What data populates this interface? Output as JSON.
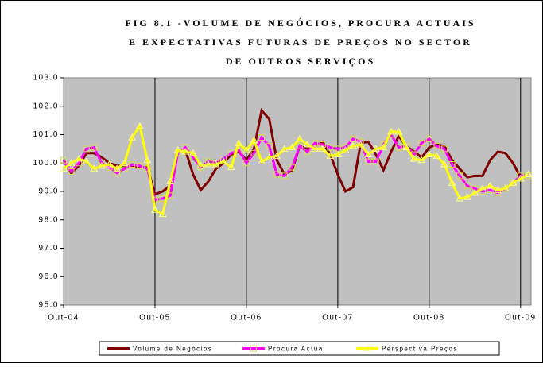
{
  "chart_data": {
    "type": "line",
    "title": [
      "FIG 8.1 -VOLUME DE NEGÓCIOS, PROCURA ACTUAIS",
      "E EXPECTATIVAS FUTURAS DE PREÇOS NO SECTOR",
      "DE OUTROS SERVIÇOS"
    ],
    "categories": [
      "Out-04",
      null,
      null,
      null,
      null,
      null,
      null,
      null,
      null,
      null,
      null,
      null,
      "Out-05",
      null,
      null,
      null,
      null,
      null,
      null,
      null,
      null,
      null,
      null,
      null,
      "Out-06",
      null,
      null,
      null,
      null,
      null,
      null,
      null,
      null,
      null,
      null,
      null,
      "Out-07",
      null,
      null,
      null,
      null,
      null,
      null,
      null,
      null,
      null,
      null,
      null,
      "Out-08",
      null,
      null,
      null,
      null,
      null,
      null,
      null,
      null,
      null,
      null,
      null,
      "Out-09",
      null
    ],
    "series": [
      {
        "name": "Volume de Negócios",
        "color": "#800000",
        "marker": "none",
        "values": [
          100.1,
          99.65,
          99.9,
          100.35,
          100.35,
          100.2,
          100.0,
          99.9,
          99.9,
          99.85,
          99.85,
          99.85,
          98.9,
          99.0,
          99.2,
          100.4,
          100.45,
          99.6,
          99.05,
          99.35,
          99.8,
          100.0,
          100.3,
          100.4,
          100.1,
          100.5,
          101.85,
          101.55,
          100.1,
          99.6,
          99.75,
          100.6,
          100.5,
          100.6,
          100.75,
          100.3,
          99.6,
          99.0,
          99.15,
          100.7,
          100.75,
          100.3,
          99.75,
          100.4,
          100.95,
          100.6,
          100.4,
          100.2,
          100.55,
          100.65,
          100.6,
          100.1,
          99.8,
          99.5,
          99.55,
          99.55,
          100.1,
          100.4,
          100.35,
          100.0,
          99.5,
          99.6
        ]
      },
      {
        "name": "Procura Actual",
        "color": "#ff00ff",
        "marker": "square",
        "values": [
          100.1,
          99.7,
          100.0,
          100.5,
          100.55,
          100.0,
          99.85,
          99.65,
          99.8,
          99.95,
          99.9,
          99.8,
          98.7,
          98.75,
          98.85,
          100.35,
          100.55,
          100.2,
          99.85,
          100.05,
          100.0,
          100.15,
          100.35,
          100.45,
          100.0,
          100.35,
          100.9,
          100.6,
          99.6,
          99.55,
          99.85,
          100.6,
          100.4,
          100.7,
          100.65,
          100.55,
          100.5,
          100.55,
          100.85,
          100.75,
          100.05,
          100.05,
          100.65,
          101.0,
          100.55,
          100.6,
          100.3,
          100.7,
          100.85,
          100.6,
          100.5,
          99.95,
          99.55,
          99.2,
          99.1,
          99.0,
          99.05,
          98.95,
          99.1,
          99.3,
          99.55,
          99.55
        ]
      },
      {
        "name": "Perspectiva Preços",
        "color": "#ffff00",
        "marker": "triangle",
        "values": [
          99.8,
          100.0,
          100.15,
          100.05,
          99.8,
          99.9,
          99.95,
          99.8,
          100.0,
          100.9,
          101.3,
          100.1,
          98.35,
          98.2,
          99.35,
          100.45,
          100.4,
          100.35,
          99.9,
          99.95,
          99.95,
          100.05,
          99.85,
          100.7,
          100.45,
          100.8,
          100.05,
          100.2,
          100.25,
          100.5,
          100.55,
          100.85,
          100.65,
          100.5,
          100.5,
          100.25,
          100.3,
          100.45,
          100.6,
          100.65,
          100.3,
          100.5,
          100.55,
          101.1,
          101.1,
          100.55,
          100.15,
          100.1,
          100.3,
          100.25,
          99.95,
          99.3,
          98.75,
          98.8,
          98.95,
          99.1,
          99.2,
          99.05,
          99.1,
          99.3,
          99.45,
          99.6
        ]
      }
    ],
    "ylim": [
      95,
      103
    ],
    "yticks": [
      {
        "value": 95,
        "label": "95.0"
      },
      {
        "value": 96,
        "label": "96.0"
      },
      {
        "value": 97,
        "label": "97.0"
      },
      {
        "value": 98,
        "label": "98.0"
      },
      {
        "value": 99,
        "label": "99.0"
      },
      {
        "value": 100,
        "label": "100.0"
      },
      {
        "value": 101,
        "label": "101.0"
      },
      {
        "value": 102,
        "label": "102.0"
      },
      {
        "value": 103,
        "label": "103.0"
      }
    ],
    "legend": "bottom",
    "plot_background": "#c0c0c0"
  }
}
